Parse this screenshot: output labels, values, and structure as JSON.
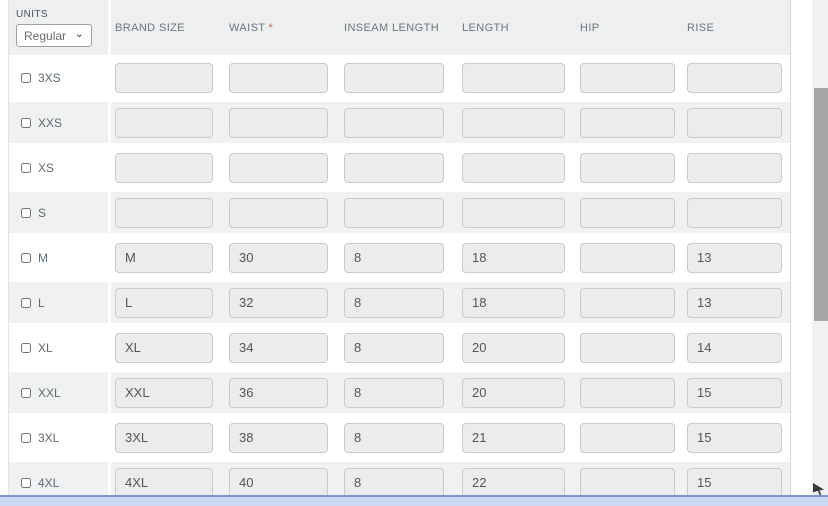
{
  "units": {
    "label": "UNITS",
    "selected": "Regular"
  },
  "columns": [
    {
      "label": "BRAND SIZE",
      "mark": ""
    },
    {
      "label": "WAIST",
      "mark": "*"
    },
    {
      "label": "INSEAM LENGTH",
      "mark": ""
    },
    {
      "label": "LENGTH",
      "mark": ""
    },
    {
      "label": "HIP",
      "mark": ""
    },
    {
      "label": "RISE",
      "mark": ""
    }
  ],
  "rows": [
    {
      "size": "3XS",
      "checked": false,
      "values": [
        "",
        "",
        "",
        "",
        "",
        ""
      ]
    },
    {
      "size": "XXS",
      "checked": false,
      "values": [
        "",
        "",
        "",
        "",
        "",
        ""
      ]
    },
    {
      "size": "XS",
      "checked": false,
      "values": [
        "",
        "",
        "",
        "",
        "",
        ""
      ]
    },
    {
      "size": "S",
      "checked": false,
      "values": [
        "",
        "",
        "",
        "",
        "",
        ""
      ]
    },
    {
      "size": "M",
      "checked": false,
      "values": [
        "M",
        "30",
        "8",
        "18",
        "",
        "13"
      ]
    },
    {
      "size": "L",
      "checked": false,
      "values": [
        "L",
        "32",
        "8",
        "18",
        "",
        "13"
      ]
    },
    {
      "size": "XL",
      "checked": false,
      "values": [
        "XL",
        "34",
        "8",
        "20",
        "",
        "14"
      ]
    },
    {
      "size": "XXL",
      "checked": false,
      "values": [
        "XXL",
        "36",
        "8",
        "20",
        "",
        "15"
      ]
    },
    {
      "size": "3XL",
      "checked": false,
      "values": [
        "3XL",
        "38",
        "8",
        "21",
        "",
        "15"
      ]
    },
    {
      "size": "4XL",
      "checked": false,
      "values": [
        "4XL",
        "40",
        "8",
        "22",
        "",
        "15"
      ]
    }
  ],
  "colors": {
    "header_band": "#eef0f0",
    "row_alt": "#f0f1f1",
    "input_bg": "#ececec",
    "required_mark": "#e0554f",
    "hscroll_bg": "#ccd7f2",
    "hscroll_border": "#8095ca",
    "vscroll_thumb": "#a6a6a6"
  }
}
